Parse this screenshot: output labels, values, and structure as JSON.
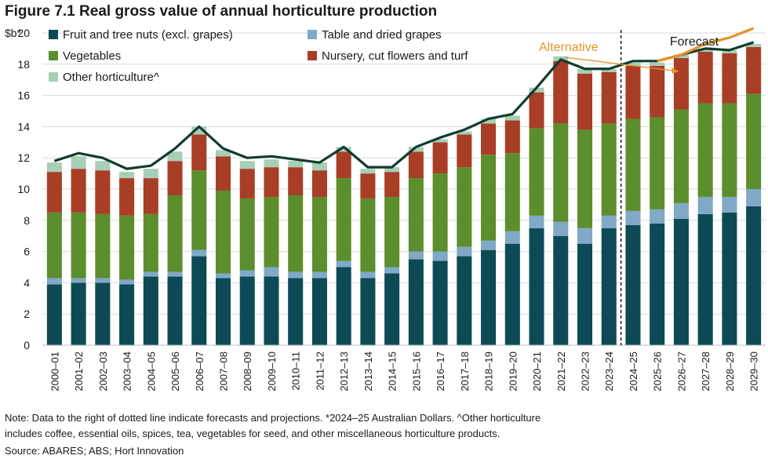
{
  "title": "Figure 7.1 Real gross value of annual horticulture production",
  "note_line1": "Note: Data to the right of dotted line indicate forecasts and projections. *2024–25 Australian Dollars. ^Other horticulture",
  "note_line2": "includes coffee, essential oils, spices, tea, vegetables for seed, and other miscellaneous horticulture products.",
  "source": "Source: ABARES; ABS; Hort Innovation",
  "chart_data": {
    "type": "bar",
    "stacked": true,
    "ylabel": "$b*",
    "ylim": [
      0,
      20
    ],
    "yticks": [
      0,
      2,
      4,
      6,
      8,
      10,
      12,
      14,
      16,
      18,
      20
    ],
    "grid": true,
    "legend_position": "top-left",
    "forecast_divider_after": "2023–24",
    "forecast_label": "Forecast",
    "categories": [
      "2000–01",
      "2001–02",
      "2002–03",
      "2003–04",
      "2004–05",
      "2005–06",
      "2006–07",
      "2007–08",
      "2008–09",
      "2009–10",
      "2010–11",
      "2011–12",
      "2012–13",
      "2013–14",
      "2014–15",
      "2015–16",
      "2016–17",
      "2017–18",
      "2018–19",
      "2019–20",
      "2020–21",
      "2021–22",
      "2022–23",
      "2023–24",
      "2024–25",
      "2025–26",
      "2026–27",
      "2027–28",
      "2028–29",
      "2029–30"
    ],
    "series": [
      {
        "name": "Fruit and tree nuts (excl. grapes)",
        "color": "#0d4a56",
        "values": [
          3.9,
          4.0,
          4.0,
          3.9,
          4.4,
          4.4,
          5.7,
          4.3,
          4.4,
          4.4,
          4.3,
          4.3,
          5.0,
          4.3,
          4.6,
          5.5,
          5.4,
          5.7,
          6.1,
          6.5,
          7.5,
          7.0,
          6.5,
          7.5,
          7.7,
          7.8,
          8.1,
          8.4,
          8.5,
          8.9
        ]
      },
      {
        "name": "Table and dried grapes",
        "color": "#7fa9c6",
        "values": [
          0.4,
          0.3,
          0.3,
          0.3,
          0.3,
          0.3,
          0.4,
          0.3,
          0.4,
          0.6,
          0.4,
          0.4,
          0.4,
          0.4,
          0.4,
          0.5,
          0.6,
          0.6,
          0.6,
          0.8,
          0.8,
          0.9,
          1.0,
          0.8,
          0.9,
          0.9,
          1.0,
          1.1,
          1.0,
          1.1
        ]
      },
      {
        "name": "Vegetables",
        "color": "#5b8e2d",
        "values": [
          4.2,
          4.2,
          4.1,
          4.1,
          3.7,
          4.9,
          5.1,
          5.3,
          4.6,
          4.5,
          4.9,
          4.8,
          5.3,
          4.7,
          4.5,
          4.7,
          5.0,
          5.1,
          5.5,
          5.0,
          5.6,
          6.3,
          6.3,
          5.9,
          5.9,
          5.9,
          6.0,
          6.0,
          6.0,
          6.1
        ]
      },
      {
        "name": "Nursery, cut flowers and turf",
        "color": "#a83e26",
        "values": [
          2.6,
          2.8,
          2.8,
          2.4,
          2.3,
          2.2,
          2.3,
          2.2,
          1.9,
          1.9,
          1.8,
          1.7,
          1.7,
          1.6,
          1.6,
          1.7,
          2.0,
          2.1,
          2.0,
          2.1,
          2.3,
          4.0,
          3.6,
          3.3,
          3.4,
          3.3,
          3.3,
          3.3,
          3.2,
          3.0
        ]
      },
      {
        "name": "Other horticulture^",
        "color": "#a7cfb6",
        "values": [
          0.6,
          0.8,
          0.6,
          0.4,
          0.6,
          0.6,
          0.5,
          0.4,
          0.5,
          0.5,
          0.4,
          0.5,
          0.3,
          0.3,
          0.3,
          0.3,
          0.2,
          0.2,
          0.3,
          0.3,
          0.3,
          0.3,
          0.3,
          0.2,
          0.2,
          0.2,
          0.2,
          0.2,
          0.2,
          0.2
        ]
      }
    ],
    "total_line": {
      "color": "#123c2e",
      "values": [
        11.8,
        12.3,
        12.0,
        11.3,
        11.5,
        12.6,
        14.0,
        12.6,
        12.0,
        12.1,
        11.9,
        11.7,
        12.7,
        11.4,
        11.4,
        12.7,
        13.3,
        13.8,
        14.5,
        14.8,
        16.5,
        18.3,
        17.7,
        17.7,
        18.2,
        18.2,
        18.6,
        19.0,
        18.9,
        19.4
      ]
    },
    "alternative_line": {
      "label": "Alternative",
      "color": "#e39427",
      "categories": [
        "2025–26",
        "2026–27",
        "2027–28",
        "2028–29",
        "2029–30"
      ],
      "values": [
        18.2,
        18.6,
        19.3,
        19.7,
        20.3
      ]
    }
  }
}
